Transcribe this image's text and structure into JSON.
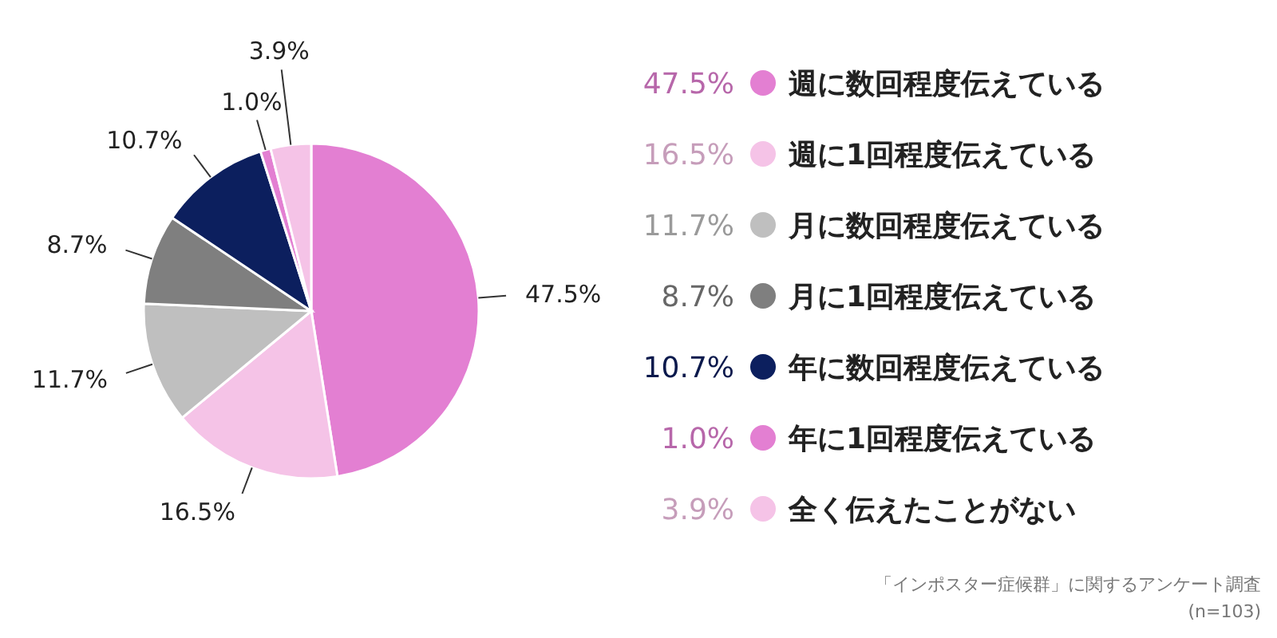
{
  "chart_data": {
    "type": "pie",
    "categories": [
      "週に数回程度伝えている",
      "週に1回程度伝えている",
      "月に数回程度伝えている",
      "月に1回程度伝えている",
      "年に数回程度伝えている",
      "年に1回程度伝えている",
      "全く伝えたことがない"
    ],
    "values": [
      47.5,
      16.5,
      11.7,
      8.7,
      10.7,
      1.0,
      3.9
    ],
    "value_labels": [
      "47.5%",
      "16.5%",
      "11.7%",
      "8.7%",
      "10.7%",
      "1.0%",
      "3.9%"
    ],
    "colors": [
      "#e37fd2",
      "#f5c3e7",
      "#bfbfbf",
      "#7f7f7f",
      "#0c1f5e",
      "#e37fd2",
      "#f5c3e7"
    ],
    "legend": "right",
    "annotations": [
      "「インポスター症候群」に関するアンケート調査",
      "(n=103)"
    ]
  }
}
